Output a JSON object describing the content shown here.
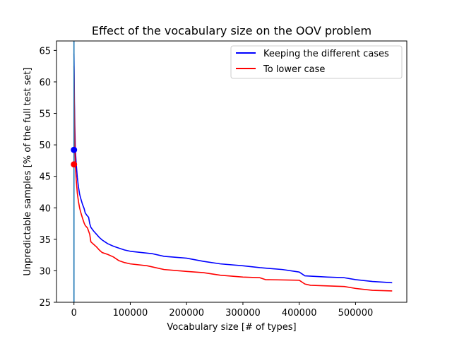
{
  "chart_data": {
    "type": "line",
    "title": "Effect of the vocabulary size on the OOV problem",
    "xlabel": "Vocabulary size [# of types]",
    "ylabel": "Unpredictable samples [% of the full test set]",
    "xlim": [
      -31000,
      591000
    ],
    "ylim": [
      25,
      66.5
    ],
    "xticks": [
      0,
      100000,
      200000,
      300000,
      400000,
      500000
    ],
    "xtick_labels": [
      "0",
      "100000",
      "200000",
      "300000",
      "400000",
      "500000"
    ],
    "yticks": [
      25,
      30,
      35,
      40,
      45,
      50,
      55,
      60,
      65
    ],
    "ytick_labels": [
      "25",
      "30",
      "35",
      "40",
      "45",
      "50",
      "55",
      "60",
      "65"
    ],
    "grid": false,
    "legend_position": "top-right",
    "series": [
      {
        "name": "Keeping the different cases",
        "color": "#0000ff",
        "points": [
          [
            0,
            64.5
          ],
          [
            300,
            62
          ],
          [
            800,
            57
          ],
          [
            1500,
            53
          ],
          [
            2500,
            49.2
          ],
          [
            4000,
            47
          ],
          [
            6000,
            44.8
          ],
          [
            8000,
            43.3
          ],
          [
            10000,
            42.2
          ],
          [
            12000,
            41.5
          ],
          [
            15000,
            40.6
          ],
          [
            18000,
            39.9
          ],
          [
            20000,
            39.2
          ],
          [
            23000,
            38.8
          ],
          [
            26000,
            38.5
          ],
          [
            28000,
            37.5
          ],
          [
            30000,
            36.9
          ],
          [
            35000,
            36.3
          ],
          [
            40000,
            35.8
          ],
          [
            45000,
            35.3
          ],
          [
            50000,
            34.9
          ],
          [
            55000,
            34.6
          ],
          [
            60000,
            34.3
          ],
          [
            70000,
            33.9
          ],
          [
            80000,
            33.6
          ],
          [
            90000,
            33.3
          ],
          [
            100000,
            33.1
          ],
          [
            120000,
            32.9
          ],
          [
            140000,
            32.7
          ],
          [
            160000,
            32.3
          ],
          [
            200000,
            32.0
          ],
          [
            230000,
            31.5
          ],
          [
            260000,
            31.1
          ],
          [
            300000,
            30.8
          ],
          [
            330000,
            30.5
          ],
          [
            370000,
            30.2
          ],
          [
            400000,
            29.8
          ],
          [
            410000,
            29.2
          ],
          [
            450000,
            29.0
          ],
          [
            480000,
            28.9
          ],
          [
            500000,
            28.6
          ],
          [
            530000,
            28.3
          ],
          [
            565000,
            28.1
          ]
        ]
      },
      {
        "name": "To lower case",
        "color": "#ff0000",
        "points": [
          [
            0,
            62.5
          ],
          [
            300,
            59.5
          ],
          [
            800,
            55
          ],
          [
            1500,
            50.5
          ],
          [
            2500,
            46.9
          ],
          [
            4000,
            44.5
          ],
          [
            6000,
            42.3
          ],
          [
            8000,
            41.0
          ],
          [
            10000,
            40.0
          ],
          [
            12000,
            39.3
          ],
          [
            15000,
            38.4
          ],
          [
            18000,
            37.6
          ],
          [
            20000,
            37.2
          ],
          [
            24000,
            36.8
          ],
          [
            28000,
            35.8
          ],
          [
            30000,
            34.6
          ],
          [
            35000,
            34.2
          ],
          [
            40000,
            33.8
          ],
          [
            45000,
            33.3
          ],
          [
            50000,
            32.9
          ],
          [
            60000,
            32.6
          ],
          [
            70000,
            32.2
          ],
          [
            80000,
            31.6
          ],
          [
            90000,
            31.3
          ],
          [
            100000,
            31.1
          ],
          [
            130000,
            30.8
          ],
          [
            160000,
            30.2
          ],
          [
            200000,
            29.9
          ],
          [
            230000,
            29.7
          ],
          [
            260000,
            29.3
          ],
          [
            300000,
            29.0
          ],
          [
            330000,
            28.9
          ],
          [
            340000,
            28.6
          ],
          [
            400000,
            28.5
          ],
          [
            410000,
            27.9
          ],
          [
            420000,
            27.7
          ],
          [
            450000,
            27.6
          ],
          [
            480000,
            27.5
          ],
          [
            500000,
            27.2
          ],
          [
            530000,
            26.9
          ],
          [
            565000,
            26.8
          ]
        ]
      }
    ],
    "markers": [
      {
        "x": 0,
        "y": 49.2,
        "color": "#0000ff"
      },
      {
        "x": 0,
        "y": 46.9,
        "color": "#ff0000"
      }
    ],
    "vline": {
      "x": 0,
      "color": "#1f77b4"
    }
  }
}
